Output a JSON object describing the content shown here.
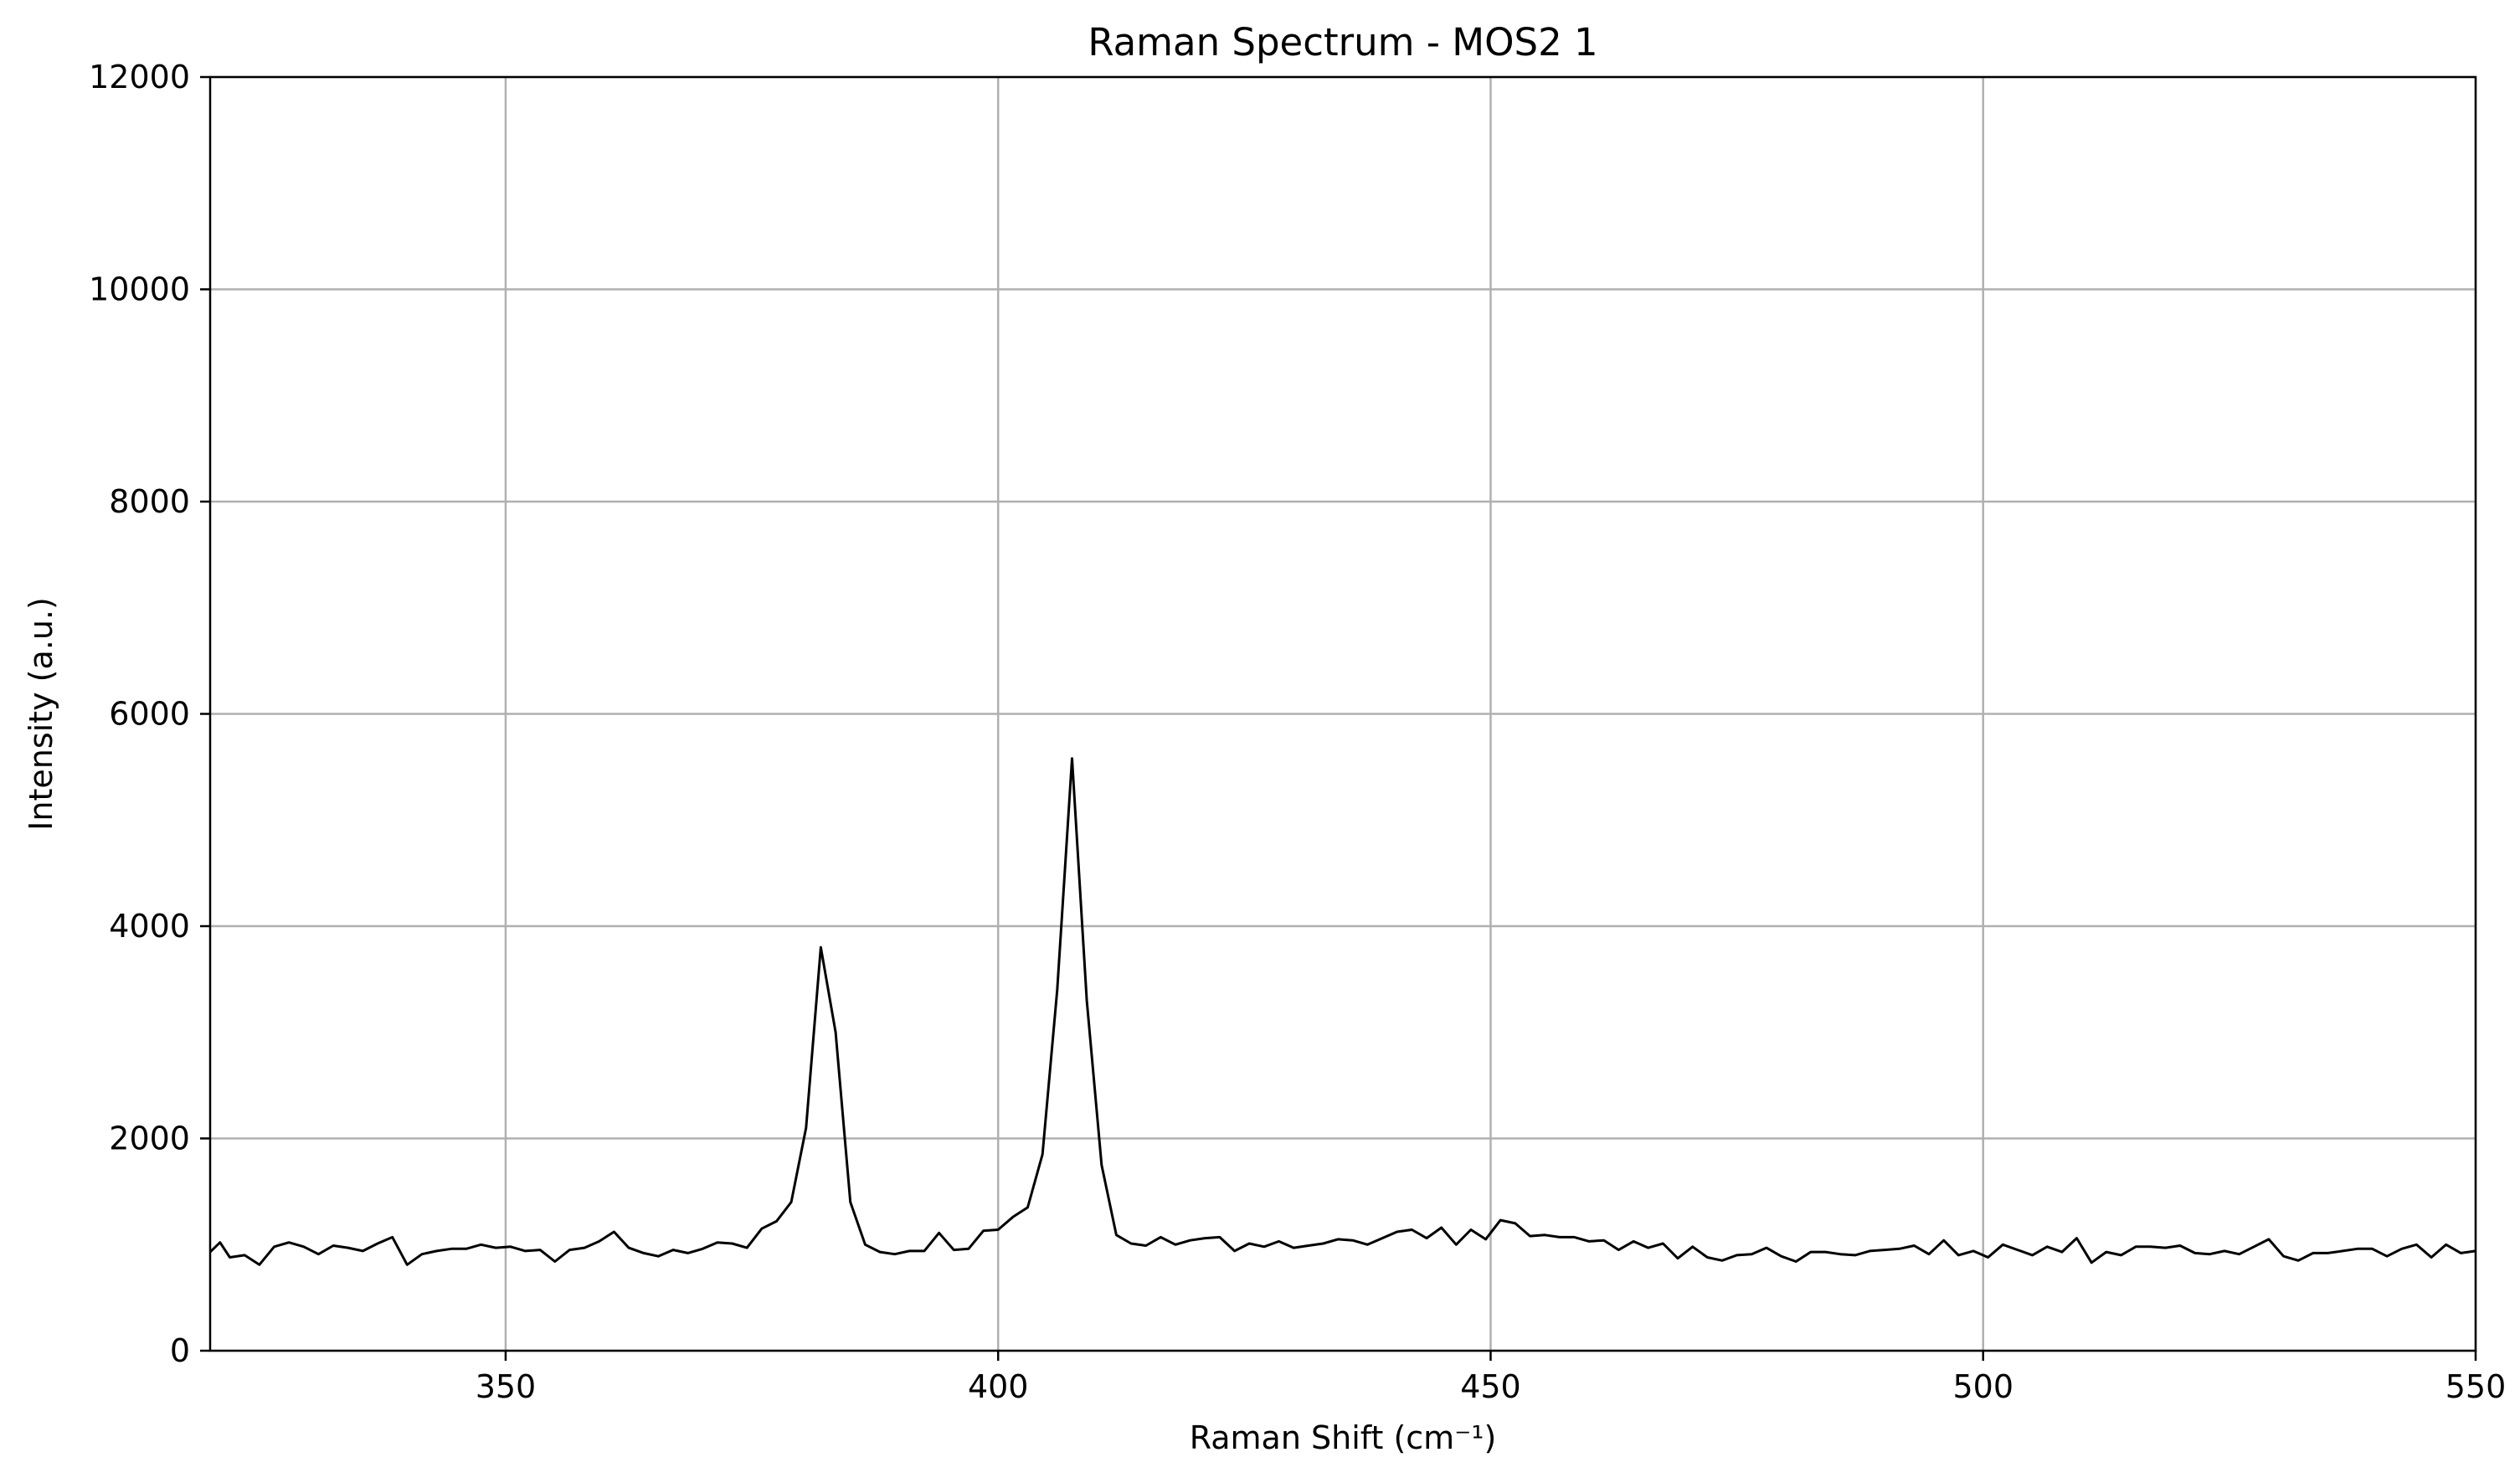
{
  "chart_data": {
    "type": "line",
    "title": "Raman Spectrum - MOS2 1",
    "xlabel": "Raman Shift (cm⁻¹)",
    "ylabel": "Intensity (a.u.)",
    "xlim": [
      320,
      550
    ],
    "ylim": [
      0,
      12000
    ],
    "xticks": [
      350,
      400,
      450,
      500,
      550
    ],
    "yticks": [
      0,
      2000,
      4000,
      6000,
      8000,
      10000,
      12000
    ],
    "grid": true,
    "line_color": "#000000",
    "grid_color": "#b0b0b0",
    "series": [
      {
        "x": [
          320,
          321,
          322,
          323.5,
          325,
          326.5,
          328,
          329.5,
          331,
          332.5,
          334,
          335.5,
          337,
          338.5,
          340,
          341.5,
          343,
          344.5,
          346,
          347.5,
          349,
          350.5,
          352,
          353.5,
          355,
          356.5,
          358,
          359.5,
          361,
          362.5,
          364,
          365.5,
          367,
          368.5,
          370,
          371.5,
          373,
          374.5,
          376,
          377.5,
          379,
          380.5,
          382,
          383.5,
          385,
          386.5,
          388,
          389.5,
          391,
          392.5,
          394,
          395.5,
          397,
          398.5,
          400,
          401.5,
          403,
          404.5,
          406,
          407.5,
          409,
          410.5,
          412,
          413.5,
          415,
          416.5,
          418,
          419.5,
          421,
          422.5,
          424,
          425.5,
          427,
          428.5,
          430,
          431.5,
          433,
          434.5,
          436,
          437.5,
          439,
          440.5,
          442,
          443.5,
          445,
          446.5,
          448,
          449.5,
          451,
          452.5,
          454,
          455.5,
          457,
          458.5,
          460,
          461.5,
          463,
          464.5,
          466,
          467.5,
          469,
          470.5,
          472,
          473.5,
          475,
          476.5,
          478,
          479.5,
          481,
          482.5,
          484,
          485.5,
          487,
          488.5,
          490,
          491.5,
          493,
          494.5,
          496,
          497.5,
          499,
          500.5,
          502,
          503.5,
          505,
          506.5,
          508,
          509.5,
          511,
          512.5,
          514,
          515.5,
          517,
          518.5,
          520,
          521.5,
          523,
          524.5,
          526,
          527.5,
          529,
          530.5,
          532,
          533.5,
          535,
          536.5,
          538,
          539.5,
          541,
          542.5,
          544,
          545.5,
          547,
          548.5,
          550
        ],
        "y": [
          930,
          1020,
          880,
          900,
          810,
          980,
          1020,
          980,
          910,
          990,
          970,
          940,
          1010,
          1070,
          810,
          910,
          940,
          960,
          960,
          1000,
          970,
          980,
          940,
          950,
          840,
          950,
          970,
          1030,
          1120,
          970,
          920,
          890,
          950,
          920,
          960,
          1020,
          1010,
          970,
          1150,
          1220,
          1400,
          2100,
          3800,
          3000,
          1400,
          1000,
          930,
          910,
          940,
          940,
          1110,
          950,
          960,
          1130,
          1140,
          1260,
          1350,
          1850,
          3400,
          5580,
          3300,
          1750,
          1090,
          1010,
          990,
          1070,
          1000,
          1040,
          1060,
          1070,
          940,
          1010,
          980,
          1030,
          970,
          990,
          1010,
          1050,
          1040,
          1000,
          1060,
          1120,
          1140,
          1060,
          1160,
          1000,
          1140,
          1050,
          1230,
          1200,
          1080,
          1090,
          1070,
          1070,
          1030,
          1040,
          950,
          1030,
          970,
          1010,
          870,
          980,
          880,
          850,
          900,
          910,
          970,
          890,
          840,
          930,
          930,
          910,
          900,
          940,
          950,
          960,
          990,
          910,
          1040,
          900,
          940,
          880,
          1000,
          950,
          900,
          980,
          930,
          1060,
          830,
          930,
          900,
          980,
          980,
          970,
          990,
          920,
          910,
          940,
          910,
          980,
          1050,
          890,
          850,
          920,
          920,
          940,
          960,
          960,
          890,
          960,
          1000,
          880,
          1000,
          920,
          940
        ]
      }
    ]
  }
}
